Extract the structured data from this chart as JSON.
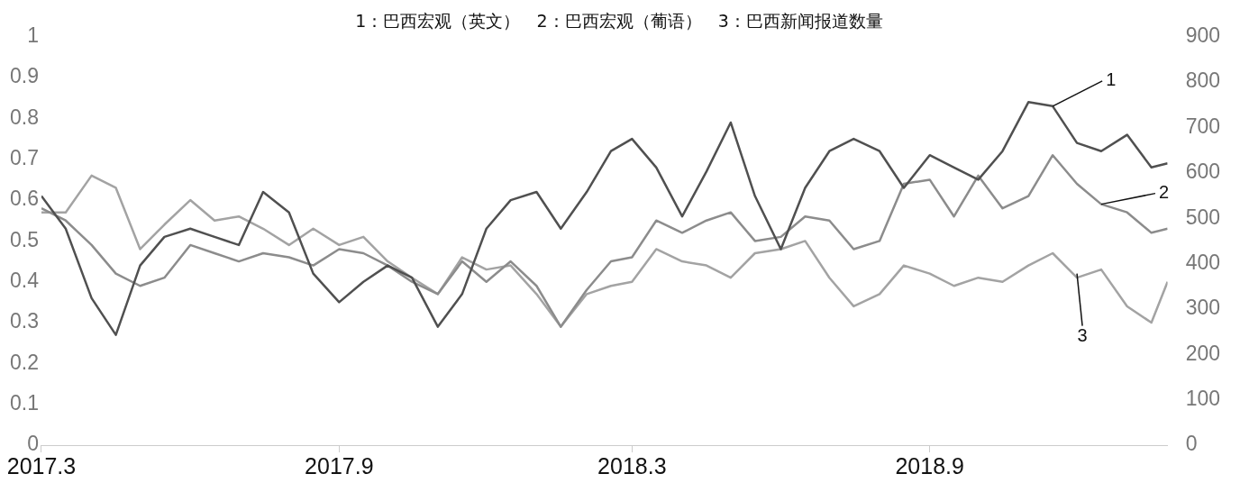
{
  "chart_data": {
    "type": "line",
    "title": "1：巴西宏观（英文）   2：巴西宏观（葡语）   3：巴西新闻报道数量",
    "x": [
      "2017-03-01",
      "2017-03-16",
      "2017-04-01",
      "2017-04-16",
      "2017-05-01",
      "2017-05-16",
      "2017-06-01",
      "2017-06-16",
      "2017-07-01",
      "2017-07-16",
      "2017-08-01",
      "2017-08-16",
      "2017-09-01",
      "2017-09-16",
      "2017-10-01",
      "2017-10-16",
      "2017-11-01",
      "2017-11-16",
      "2017-12-01",
      "2017-12-16",
      "2018-01-01",
      "2018-01-16",
      "2018-02-01",
      "2018-02-16",
      "2018-03-01",
      "2018-03-16",
      "2018-04-01",
      "2018-04-16",
      "2018-05-01",
      "2018-05-16",
      "2018-06-01",
      "2018-06-16",
      "2018-07-01",
      "2018-07-16",
      "2018-08-01",
      "2018-08-16",
      "2018-09-01",
      "2018-09-16",
      "2018-10-01",
      "2018-10-16",
      "2018-11-01",
      "2018-11-16",
      "2018-12-01",
      "2018-12-16",
      "2019-01-01",
      "2019-01-16",
      "2019-01-26"
    ],
    "series": [
      {
        "color": "#505050",
        "values": [
          0.61,
          0.53,
          0.36,
          0.27,
          0.44,
          0.51,
          0.53,
          0.51,
          0.49,
          0.62,
          0.57,
          0.42,
          0.35,
          0.4,
          0.44,
          0.41,
          0.29,
          0.37,
          0.53,
          0.6,
          0.62,
          0.53,
          0.62,
          0.72,
          0.75,
          0.68,
          0.56,
          0.67,
          0.79,
          0.61,
          0.48,
          0.63,
          0.72,
          0.75,
          0.72,
          0.63,
          0.71,
          0.68,
          0.65,
          0.72,
          0.84,
          0.83,
          0.74,
          0.72,
          0.76,
          0.68,
          0.69
        ]
      },
      {
        "color": "#8c8c8c",
        "values": [
          0.58,
          0.55,
          0.49,
          0.42,
          0.39,
          0.41,
          0.49,
          0.47,
          0.45,
          0.47,
          0.46,
          0.44,
          0.48,
          0.47,
          0.44,
          0.4,
          0.37,
          0.45,
          0.4,
          0.45,
          0.39,
          0.29,
          0.38,
          0.45,
          0.46,
          0.55,
          0.52,
          0.55,
          0.57,
          0.5,
          0.51,
          0.56,
          0.55,
          0.48,
          0.5,
          0.64,
          0.65,
          0.56,
          0.66,
          0.58,
          0.61,
          0.71,
          0.64,
          0.59,
          0.57,
          0.52,
          0.53
        ]
      },
      {
        "color": "#a3a3a3",
        "axis": "y2",
        "values": [
          513,
          513,
          594,
          567,
          432,
          486,
          540,
          495,
          504,
          477,
          441,
          477,
          441,
          459,
          405,
          369,
          333,
          414,
          387,
          396,
          333,
          261,
          333,
          351,
          360,
          432,
          405,
          396,
          369,
          423,
          432,
          450,
          369,
          306,
          333,
          396,
          378,
          351,
          369,
          360,
          396,
          423,
          369,
          387,
          306,
          270,
          360
        ]
      }
    ],
    "annotations": [
      {
        "text": "1",
        "x": "2018-11-16",
        "y": 0.83
      },
      {
        "text": "2",
        "x": "2018-12-16",
        "y": 0.59
      },
      {
        "text": "3",
        "x": "2018-12-01",
        "y": 0.42
      }
    ],
    "xlim": [
      "2017-03-01",
      "2019-01-26"
    ],
    "xticks": [
      {
        "value": "2017-03-01",
        "label": "2017.3"
      },
      {
        "value": "2017-09-01",
        "label": "2017.9"
      },
      {
        "value": "2018-03-01",
        "label": "2018.3"
      },
      {
        "value": "2018-09-01",
        "label": "2018.9"
      }
    ],
    "ylim": [
      0,
      1
    ],
    "yticks": [
      0,
      0.1,
      0.2,
      0.3,
      0.4,
      0.5,
      0.6,
      0.7,
      0.8,
      0.9,
      1
    ],
    "y2lim": [
      0,
      900
    ],
    "y2ticks": [
      0,
      100,
      200,
      300,
      400,
      500,
      600,
      700,
      800,
      900
    ],
    "grid": false,
    "legend": false,
    "marker": "none",
    "line_style": "solid"
  }
}
